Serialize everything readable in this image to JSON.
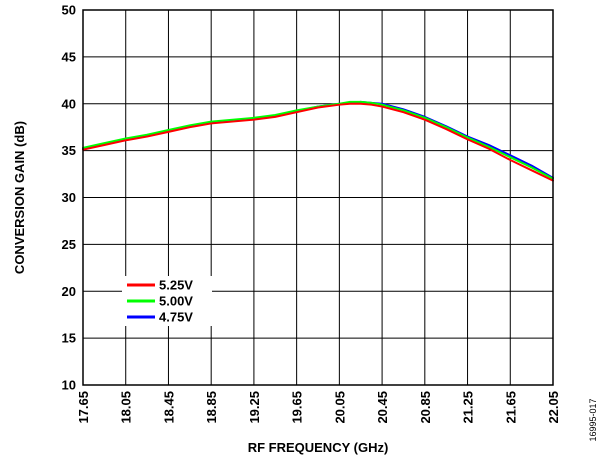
{
  "chart_data": {
    "type": "line",
    "xlabel": "RF FREQUENCY (GHz)",
    "ylabel": "CONVERSION GAIN (dB)",
    "xlim": [
      17.65,
      22.05
    ],
    "ylim": [
      10,
      50
    ],
    "x_ticks": [
      "17.65",
      "18.05",
      "18.45",
      "18.85",
      "19.25",
      "19.65",
      "20.05",
      "20.45",
      "20.85",
      "21.25",
      "21.65",
      "22.05"
    ],
    "y_ticks": [
      "10",
      "15",
      "20",
      "25",
      "30",
      "35",
      "40",
      "45",
      "50"
    ],
    "grid": true,
    "legend_position": "lower-left",
    "figure_id": "16995-017",
    "series": [
      {
        "name": "5.25V",
        "color": "#ff0000",
        "x": [
          17.65,
          17.85,
          18.05,
          18.25,
          18.45,
          18.65,
          18.85,
          19.05,
          19.25,
          19.45,
          19.65,
          19.85,
          20.05,
          20.15,
          20.25,
          20.35,
          20.45,
          20.65,
          20.85,
          21.05,
          21.25,
          21.45,
          21.65,
          21.85,
          22.05
        ],
        "y": [
          35.1,
          35.6,
          36.1,
          36.5,
          37.0,
          37.5,
          37.9,
          38.1,
          38.3,
          38.6,
          39.1,
          39.6,
          39.9,
          40.0,
          40.0,
          39.9,
          39.7,
          39.1,
          38.3,
          37.3,
          36.2,
          35.2,
          34.0,
          32.9,
          31.8
        ]
      },
      {
        "name": "5.00V",
        "color": "#00ff00",
        "x": [
          17.65,
          17.85,
          18.05,
          18.25,
          18.45,
          18.65,
          18.85,
          19.05,
          19.25,
          19.45,
          19.65,
          19.85,
          20.05,
          20.15,
          20.25,
          20.35,
          20.45,
          20.65,
          20.85,
          21.05,
          21.25,
          21.45,
          21.65,
          21.85,
          22.05
        ],
        "y": [
          35.3,
          35.8,
          36.3,
          36.7,
          37.2,
          37.7,
          38.1,
          38.3,
          38.5,
          38.8,
          39.3,
          39.7,
          40.0,
          40.2,
          40.2,
          40.1,
          39.9,
          39.3,
          38.5,
          37.5,
          36.4,
          35.4,
          34.3,
          33.2,
          32.0
        ]
      },
      {
        "name": "4.75V",
        "color": "#0000ff",
        "x": [
          17.65,
          17.85,
          18.05,
          18.25,
          18.45,
          18.65,
          18.85,
          19.05,
          19.25,
          19.45,
          19.65,
          19.85,
          20.05,
          20.15,
          20.25,
          20.35,
          20.45,
          20.65,
          20.85,
          21.05,
          21.25,
          21.45,
          21.65,
          21.85,
          22.05
        ],
        "y": [
          35.2,
          35.7,
          36.2,
          36.6,
          37.1,
          37.6,
          38.0,
          38.2,
          38.4,
          38.7,
          39.2,
          39.7,
          40.0,
          40.1,
          40.2,
          40.1,
          40.0,
          39.4,
          38.6,
          37.6,
          36.5,
          35.6,
          34.5,
          33.4,
          32.1
        ]
      }
    ]
  }
}
